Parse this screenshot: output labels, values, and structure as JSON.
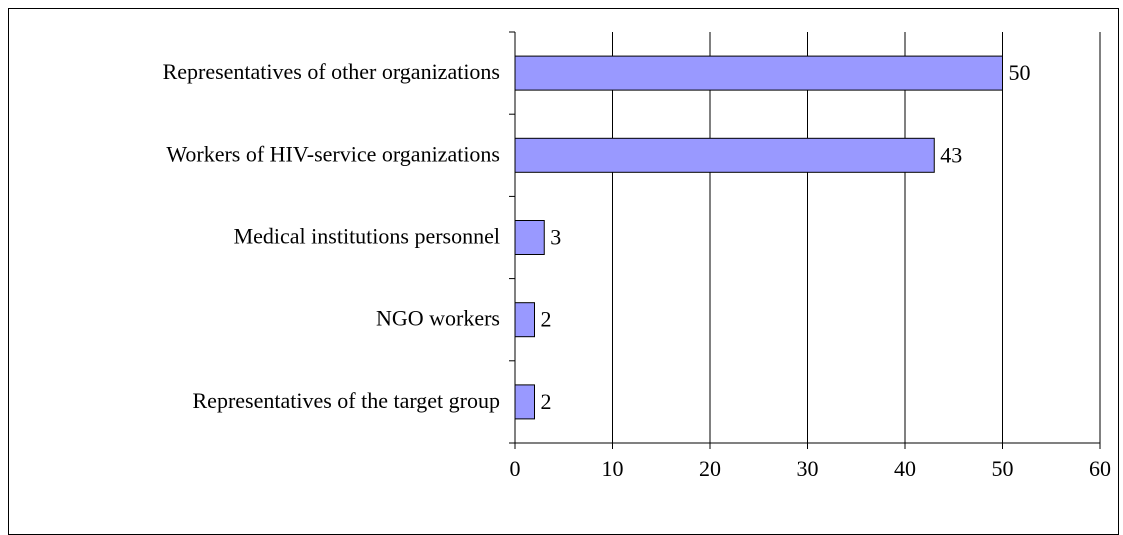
{
  "chart_data": {
    "type": "bar",
    "orientation": "horizontal",
    "categories": [
      "Representatives of other organizations",
      "Workers of HIV-service organizations",
      "Medical institutions personnel",
      "NGO workers",
      "Representatives of the target group"
    ],
    "values": [
      50,
      43,
      3,
      2,
      2
    ],
    "color": "#9999ff",
    "xlim": [
      0,
      60
    ],
    "xticks": [
      0,
      10,
      20,
      30,
      40,
      50,
      60
    ],
    "grid": true
  }
}
